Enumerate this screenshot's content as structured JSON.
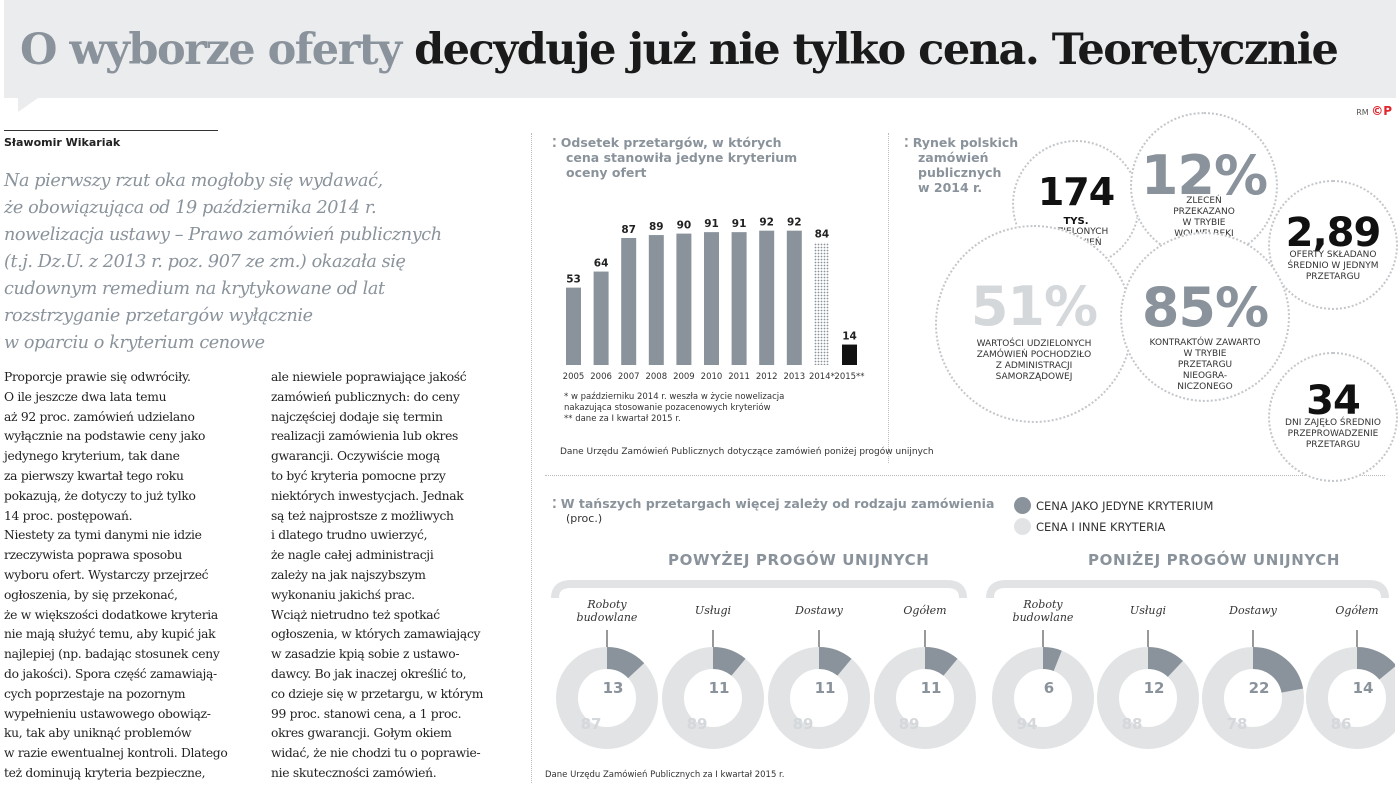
{
  "headline": {
    "part1": "O wyborze oferty",
    "part2": "decyduje już nie tylko cena. Teoretycznie"
  },
  "logo": {
    "initials": "RM",
    "mark": "©P"
  },
  "article": {
    "author": "Sławomir Wikariak",
    "lead": [
      "Na pierwszy rzut oka mogłoby się wydawać,",
      "że obowiązująca od 19 października 2014 r.",
      "nowelizacja ustawy – Prawo zamówień publicznych",
      "(t.j. Dz.U. z 2013 r. poz. 907 ze zm.) okazała się",
      "cudownym remedium na krytykowane od lat",
      "rozstrzyganie przetargów wyłącznie",
      "w oparciu o kryterium cenowe"
    ],
    "col1": [
      "Proporcje prawie się odwróciły.",
      "O ile jeszcze dwa lata temu",
      "aż 92 proc. zamówień udzielano",
      "wyłącznie na podstawie ceny jako",
      "jedynego kryterium, tak dane",
      "za pierwszy kwartał tego roku",
      "pokazują, że dotyczy to już tylko",
      "14 proc. postępowań.",
      "Niestety za tymi danymi nie idzie",
      "rzeczywista poprawa sposobu",
      "wyboru ofert. Wystarczy przejrzeć",
      "ogłoszenia, by się przekonać,",
      "że w większości dodatkowe kryteria",
      "nie mają służyć temu, aby kupić jak",
      "najlepiej (np. badając stosunek ceny",
      "do jakości). Spora część zamawiają-",
      "cych poprzestaje na pozornym",
      "wypełnieniu ustawowego obowiąz-",
      "ku, tak aby uniknąć problemów",
      "w razie ewentualnej kontroli. Dlatego",
      "też dominują kryteria bezpieczne,"
    ],
    "col2": [
      "ale niewiele poprawiające jakość",
      "zamówień publicznych: do ceny",
      "najczęściej dodaje się termin",
      "realizacji zamówienia lub okres",
      "gwarancji. Oczywiście mogą",
      "to być kryteria pomocne przy",
      "niektórych inwestycjach. Jednak",
      "są też najprostsze z możliwych",
      "i dlatego trudno uwierzyć,",
      "że nagle całej administracji",
      "zależy na jak najszybszym",
      "wykonaniu jakichś prac.",
      "Wciąż nietrudno też spotkać",
      "ogłoszenia, w których zamawiający",
      "w zasadzie kpią sobie z ustawo-",
      "dawcy. Bo jak inaczej określić to,",
      "co dzieje się w przetargu, w którym",
      "99 proc. stanowi cena, a 1 proc.",
      "okres gwarancji. Gołym okiem",
      "widać, że nie chodzi tu o poprawie-",
      "nie skuteczności zamówień."
    ]
  },
  "bar_section": {
    "title": [
      "Odsetek przetargów, w których",
      "cena stanowiła jedyne kryterium",
      "oceny ofert"
    ],
    "notes": [
      "* w październiku 2014 r. weszła w życie nowelizacja",
      "nakazująca stosowanie pozacenowych kryteriów",
      "** dane za I kwartał 2015 r."
    ],
    "source": "Dane Urzędu Zamówień Publicznych dotyczące zamówień poniżej progów unijnych"
  },
  "market": {
    "title": [
      "Rynek polskich",
      "zamówień",
      "publicznych",
      "w 2014 r."
    ],
    "bubbles": [
      {
        "value": "174",
        "unit": "TYS.",
        "caption": [
          "UDZIELONYCH",
          "ZAMÓWIEŃ"
        ]
      },
      {
        "value": "12%",
        "caption": [
          "ZLECEŃ",
          "PRZEKAZANO",
          "W TRYBIE",
          "WOLNEJ RĘKI"
        ]
      },
      {
        "value": "2,89",
        "caption": [
          "OFERTY SKŁADANO",
          "ŚREDNIO W JEDNYM",
          "PRZETARGU"
        ]
      },
      {
        "value": "51%",
        "caption": [
          "WARTOŚCI UDZIELONYCH",
          "ZAMÓWIEŃ POCHODZIŁO",
          "Z ADMINISTRACJI",
          "SAMORZĄDOWEJ"
        ]
      },
      {
        "value": "85%",
        "caption": [
          "KONTRAKTÓW ZAWARTO",
          "W TRYBIE",
          "PRZETARGU",
          "NIEOGRA-",
          "NICZONEGO"
        ]
      },
      {
        "value": "34",
        "caption": [
          "DNI ZAJĘŁO ŚREDNIO",
          "PRZEPROWADZENIE",
          "PRZETARGU"
        ]
      }
    ]
  },
  "donut_section": {
    "title": "W tańszych przetargach więcej zależy od rodzaju zamówienia",
    "subtitle": "(proc.)",
    "legend": [
      {
        "label": "CENA JAKO JEDYNE KRYTERIUM",
        "color": "#8a939b"
      },
      {
        "label": "CENA I INNE KRYTERIA",
        "color": "#e1e3e5"
      }
    ],
    "source": "Dane Urzędu Zamówień Publicznych za I kwartał 2015 r."
  },
  "colors": {
    "accent_grey": "#8a939b",
    "light_grey": "#e1e3e5",
    "dark": "#1a1a1a",
    "logo_red": "#e0262e"
  },
  "chart_data": [
    {
      "type": "bar",
      "title": "Odsetek przetargów, w których cena stanowiła jedyne kryterium oceny ofert",
      "categories": [
        "2005",
        "2006",
        "2007",
        "2008",
        "2009",
        "2010",
        "2011",
        "2012",
        "2013",
        "2014*",
        "2015**"
      ],
      "values": [
        53,
        64,
        87,
        89,
        90,
        91,
        91,
        92,
        92,
        84,
        14
      ],
      "styles": [
        "solid",
        "solid",
        "solid",
        "solid",
        "solid",
        "solid",
        "solid",
        "solid",
        "solid",
        "dotted",
        "black"
      ],
      "ylim": [
        0,
        100
      ]
    },
    {
      "type": "pie",
      "title": "W tańszych przetargach więcej zależy od rodzaju zamówienia",
      "groups": [
        {
          "name": "POWYŻEJ PROGÓW UNIJNYCH",
          "items": [
            {
              "label": [
                "Roboty",
                "budowlane"
              ],
              "price_only": 13,
              "other": 87
            },
            {
              "label": [
                "Usługi"
              ],
              "price_only": 11,
              "other": 89
            },
            {
              "label": [
                "Dostawy"
              ],
              "price_only": 11,
              "other": 89
            },
            {
              "label": [
                "Ogółem"
              ],
              "price_only": 11,
              "other": 89
            }
          ]
        },
        {
          "name": "PONIŻEJ PROGÓW UNIJNYCH",
          "items": [
            {
              "label": [
                "Roboty",
                "budowlane"
              ],
              "price_only": 6,
              "other": 94
            },
            {
              "label": [
                "Usługi"
              ],
              "price_only": 12,
              "other": 88
            },
            {
              "label": [
                "Dostawy"
              ],
              "price_only": 22,
              "other": 78
            },
            {
              "label": [
                "Ogółem"
              ],
              "price_only": 14,
              "other": 86
            }
          ]
        }
      ]
    }
  ]
}
